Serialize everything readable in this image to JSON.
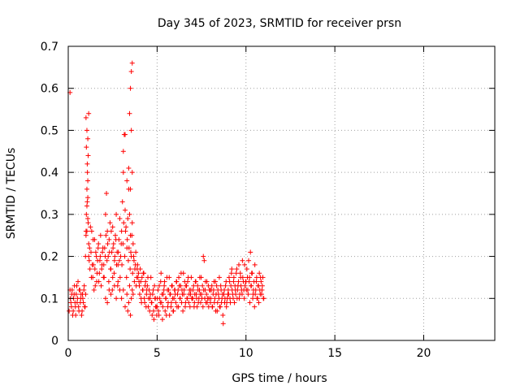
{
  "chart_data": {
    "type": "scatter",
    "title": "Day 345 of 2023, SRMTID for receiver prsn",
    "xlabel": "GPS time / hours",
    "ylabel": "SRMTID / TECUs",
    "xlim": [
      0,
      24
    ],
    "ylim": [
      0,
      0.7
    ],
    "xticks": [
      0,
      5,
      10,
      15,
      20
    ],
    "yticks": [
      0,
      0.1,
      0.2,
      0.3,
      0.4,
      0.5,
      0.6,
      0.7
    ],
    "xtick_labels": [
      "0",
      "5",
      "10",
      "15",
      "20"
    ],
    "ytick_labels": [
      "0",
      "0.1",
      "0.2",
      "0.3",
      "0.4",
      "0.5",
      "0.6",
      "0.7"
    ],
    "grid": true,
    "marker": "+",
    "series": [
      {
        "name": "SRMTID",
        "color": "#ff0000",
        "x": [
          0.05,
          0.1,
          0.15,
          0.2,
          0.25,
          0.3,
          0.35,
          0.4,
          0.45,
          0.5,
          0.55,
          0.6,
          0.65,
          0.7,
          0.75,
          0.8,
          0.85,
          0.9,
          0.95,
          0.12,
          0.18,
          0.22,
          0.28,
          0.33,
          0.38,
          0.42,
          0.48,
          0.52,
          0.58,
          0.62,
          0.68,
          0.72,
          0.78,
          0.82,
          0.88,
          0.92,
          0.98,
          0.1,
          1.0,
          1.05,
          1.1,
          1.15,
          1.2,
          1.25,
          1.3,
          1.35,
          1.4,
          1.45,
          1.5,
          1.55,
          1.6,
          1.65,
          1.7,
          1.75,
          1.8,
          1.85,
          1.9,
          1.95,
          0.97,
          1.0,
          1.02,
          1.05,
          1.07,
          1.1,
          1.12,
          1.15,
          1.18,
          1.22,
          1.28,
          1.32,
          1.38,
          1.42,
          1.48,
          1.52,
          1.58,
          1.62,
          1.68,
          1.72,
          1.78,
          1.82,
          1.88,
          1.92,
          1.98,
          1.0,
          1.02,
          1.05,
          1.08,
          1.1,
          1.12,
          1.15,
          1.05,
          1.07,
          1.1,
          2.0,
          2.05,
          2.1,
          2.15,
          2.2,
          2.25,
          2.3,
          2.35,
          2.4,
          2.45,
          2.5,
          2.55,
          2.6,
          2.65,
          2.7,
          2.75,
          2.8,
          2.85,
          2.9,
          2.95,
          2.02,
          2.08,
          2.12,
          2.18,
          2.22,
          2.28,
          2.32,
          2.38,
          2.42,
          2.48,
          2.52,
          2.58,
          2.62,
          2.68,
          2.72,
          2.78,
          2.82,
          2.88,
          2.92,
          2.98,
          2.1,
          2.2,
          2.3,
          2.4,
          2.5,
          2.6,
          2.7,
          2.8,
          2.9,
          3.0,
          3.05,
          3.1,
          3.15,
          3.2,
          3.25,
          3.3,
          3.35,
          3.4,
          3.45,
          3.5,
          3.55,
          3.6,
          3.65,
          3.7,
          3.75,
          3.8,
          3.85,
          3.9,
          3.95,
          3.02,
          3.08,
          3.12,
          3.18,
          3.22,
          3.28,
          3.32,
          3.38,
          3.42,
          3.48,
          3.52,
          3.58,
          3.62,
          3.68,
          3.72,
          3.78,
          3.82,
          3.88,
          3.92,
          3.98,
          3.0,
          3.1,
          3.2,
          3.3,
          3.35,
          3.4,
          3.45,
          3.5,
          3.55,
          3.6,
          3.65,
          3.5,
          3.55,
          3.6,
          3.45,
          3.55,
          3.1,
          3.2,
          3.3,
          3.4,
          3.5,
          3.6,
          4.0,
          4.05,
          4.1,
          4.15,
          4.2,
          4.25,
          4.3,
          4.35,
          4.4,
          4.45,
          4.5,
          4.55,
          4.6,
          4.65,
          4.7,
          4.75,
          4.8,
          4.85,
          4.9,
          4.95,
          4.02,
          4.08,
          4.12,
          4.18,
          4.22,
          4.28,
          4.32,
          4.38,
          4.42,
          4.48,
          4.52,
          4.58,
          4.62,
          4.68,
          4.72,
          4.78,
          4.82,
          4.88,
          4.92,
          4.98,
          5.0,
          5.05,
          5.1,
          5.15,
          5.2,
          5.25,
          5.3,
          5.35,
          5.4,
          5.45,
          5.5,
          5.55,
          5.6,
          5.65,
          5.7,
          5.75,
          5.8,
          5.85,
          5.9,
          5.95,
          5.02,
          5.08,
          5.12,
          5.18,
          5.22,
          5.28,
          5.32,
          5.38,
          5.42,
          5.48,
          5.52,
          5.58,
          5.62,
          5.68,
          5.72,
          5.78,
          5.82,
          5.88,
          5.92,
          5.98,
          6.0,
          6.05,
          6.1,
          6.15,
          6.2,
          6.25,
          6.3,
          6.35,
          6.4,
          6.45,
          6.5,
          6.55,
          6.6,
          6.65,
          6.7,
          6.75,
          6.8,
          6.85,
          6.9,
          6.95,
          6.02,
          6.08,
          6.12,
          6.18,
          6.22,
          6.28,
          6.32,
          6.38,
          6.42,
          6.48,
          6.52,
          6.58,
          6.62,
          6.68,
          6.72,
          6.78,
          6.82,
          6.88,
          6.92,
          6.98,
          7.0,
          7.05,
          7.1,
          7.15,
          7.2,
          7.25,
          7.3,
          7.35,
          7.4,
          7.45,
          7.5,
          7.55,
          7.6,
          7.65,
          7.7,
          7.75,
          7.8,
          7.85,
          7.9,
          7.95,
          7.02,
          7.08,
          7.12,
          7.18,
          7.22,
          7.28,
          7.32,
          7.38,
          7.42,
          7.48,
          7.52,
          7.58,
          7.62,
          7.68,
          7.72,
          7.78,
          7.82,
          7.88,
          7.92,
          7.98,
          8.0,
          8.05,
          8.1,
          8.15,
          8.2,
          8.25,
          8.3,
          8.35,
          8.4,
          8.45,
          8.5,
          8.55,
          8.6,
          8.65,
          8.7,
          8.75,
          8.8,
          8.85,
          8.9,
          8.95,
          8.02,
          8.08,
          8.12,
          8.18,
          8.22,
          8.28,
          8.32,
          8.38,
          8.42,
          8.48,
          8.52,
          8.58,
          8.62,
          8.68,
          8.72,
          8.78,
          8.82,
          8.88,
          8.92,
          8.98,
          9.0,
          9.05,
          9.1,
          9.15,
          9.2,
          9.25,
          9.3,
          9.35,
          9.4,
          9.45,
          9.5,
          9.55,
          9.6,
          9.65,
          9.7,
          9.75,
          9.8,
          9.85,
          9.9,
          9.95,
          9.02,
          9.08,
          9.12,
          9.18,
          9.22,
          9.28,
          9.32,
          9.38,
          9.42,
          9.48,
          9.52,
          9.58,
          9.62,
          9.68,
          9.72,
          9.78,
          9.82,
          9.88,
          9.92,
          9.98,
          10.0,
          10.05,
          10.1,
          10.15,
          10.2,
          10.25,
          10.3,
          10.35,
          10.4,
          10.45,
          10.5,
          10.55,
          10.6,
          10.65,
          10.7,
          10.75,
          10.8,
          10.85,
          10.9,
          10.95,
          11.0,
          10.02,
          10.08,
          10.12,
          10.18,
          10.22,
          10.28,
          10.32,
          10.38,
          10.42,
          10.48,
          10.52,
          10.58,
          10.62,
          10.68,
          10.72,
          10.78,
          10.82,
          10.88,
          10.92,
          10.98
        ],
        "y": [
          0.07,
          0.12,
          0.09,
          0.11,
          0.06,
          0.1,
          0.13,
          0.08,
          0.11,
          0.09,
          0.14,
          0.07,
          0.12,
          0.1,
          0.06,
          0.11,
          0.09,
          0.13,
          0.08,
          0.1,
          0.08,
          0.12,
          0.07,
          0.11,
          0.09,
          0.06,
          0.13,
          0.1,
          0.08,
          0.12,
          0.09,
          0.11,
          0.07,
          0.1,
          0.12,
          0.08,
          0.11,
          0.59,
          0.25,
          0.32,
          0.38,
          0.2,
          0.22,
          0.27,
          0.15,
          0.18,
          0.24,
          0.12,
          0.17,
          0.21,
          0.14,
          0.19,
          0.23,
          0.16,
          0.2,
          0.13,
          0.18,
          0.22,
          0.2,
          0.53,
          0.46,
          0.5,
          0.42,
          0.34,
          0.28,
          0.23,
          0.19,
          0.17,
          0.21,
          0.26,
          0.15,
          0.18,
          0.24,
          0.13,
          0.2,
          0.16,
          0.22,
          0.14,
          0.19,
          0.25,
          0.17,
          0.21,
          0.15,
          0.26,
          0.3,
          0.36,
          0.4,
          0.48,
          0.44,
          0.54,
          0.26,
          0.33,
          0.29,
          0.18,
          0.22,
          0.3,
          0.35,
          0.26,
          0.2,
          0.24,
          0.28,
          0.17,
          0.21,
          0.27,
          0.23,
          0.19,
          0.25,
          0.3,
          0.21,
          0.18,
          0.24,
          0.29,
          0.2,
          0.15,
          0.2,
          0.25,
          0.19,
          0.23,
          0.14,
          0.21,
          0.17,
          0.26,
          0.12,
          0.22,
          0.16,
          0.2,
          0.24,
          0.18,
          0.13,
          0.21,
          0.19,
          0.15,
          0.23,
          0.1,
          0.09,
          0.12,
          0.11,
          0.15,
          0.13,
          0.1,
          0.14,
          0.12,
          0.26,
          0.33,
          0.4,
          0.49,
          0.31,
          0.27,
          0.22,
          0.29,
          0.36,
          0.3,
          0.25,
          0.2,
          0.28,
          0.23,
          0.19,
          0.17,
          0.21,
          0.15,
          0.18,
          0.16,
          0.18,
          0.23,
          0.28,
          0.2,
          0.26,
          0.15,
          0.24,
          0.19,
          0.22,
          0.17,
          0.21,
          0.25,
          0.16,
          0.2,
          0.14,
          0.18,
          0.13,
          0.17,
          0.15,
          0.14,
          0.1,
          0.12,
          0.08,
          0.11,
          0.07,
          0.09,
          0.13,
          0.06,
          0.1,
          0.12,
          0.11,
          0.6,
          0.64,
          0.66,
          0.54,
          0.5,
          0.45,
          0.49,
          0.38,
          0.41,
          0.36,
          0.4,
          0.13,
          0.17,
          0.1,
          0.15,
          0.12,
          0.16,
          0.09,
          0.14,
          0.11,
          0.13,
          0.08,
          0.12,
          0.1,
          0.15,
          0.09,
          0.11,
          0.07,
          0.13,
          0.1,
          0.08,
          0.11,
          0.14,
          0.09,
          0.12,
          0.16,
          0.1,
          0.13,
          0.08,
          0.12,
          0.15,
          0.1,
          0.07,
          0.11,
          0.09,
          0.06,
          0.12,
          0.05,
          0.1,
          0.08,
          0.06,
          0.08,
          0.12,
          0.06,
          0.1,
          0.14,
          0.09,
          0.05,
          0.11,
          0.13,
          0.07,
          0.1,
          0.15,
          0.08,
          0.12,
          0.06,
          0.11,
          0.09,
          0.13,
          0.07,
          0.1,
          0.1,
          0.07,
          0.13,
          0.09,
          0.16,
          0.11,
          0.08,
          0.12,
          0.14,
          0.1,
          0.06,
          0.12,
          0.09,
          0.15,
          0.11,
          0.08,
          0.13,
          0.1,
          0.07,
          0.12,
          0.12,
          0.09,
          0.14,
          0.11,
          0.08,
          0.13,
          0.1,
          0.16,
          0.12,
          0.07,
          0.11,
          0.14,
          0.09,
          0.13,
          0.1,
          0.15,
          0.11,
          0.08,
          0.12,
          0.1,
          0.11,
          0.14,
          0.08,
          0.12,
          0.15,
          0.1,
          0.13,
          0.09,
          0.11,
          0.16,
          0.12,
          0.08,
          0.13,
          0.1,
          0.14,
          0.09,
          0.12,
          0.11,
          0.15,
          0.1,
          0.1,
          0.13,
          0.09,
          0.14,
          0.11,
          0.08,
          0.12,
          0.1,
          0.15,
          0.09,
          0.11,
          0.13,
          0.2,
          0.19,
          0.12,
          0.09,
          0.14,
          0.1,
          0.08,
          0.12,
          0.12,
          0.08,
          0.11,
          0.14,
          0.1,
          0.13,
          0.09,
          0.12,
          0.11,
          0.15,
          0.1,
          0.08,
          0.12,
          0.1,
          0.14,
          0.11,
          0.09,
          0.13,
          0.1,
          0.12,
          0.09,
          0.12,
          0.08,
          0.11,
          0.14,
          0.1,
          0.07,
          0.13,
          0.09,
          0.11,
          0.15,
          0.08,
          0.12,
          0.1,
          0.06,
          0.11,
          0.09,
          0.13,
          0.08,
          0.1,
          0.1,
          0.13,
          0.08,
          0.12,
          0.09,
          0.14,
          0.11,
          0.07,
          0.12,
          0.1,
          0.08,
          0.13,
          0.09,
          0.11,
          0.04,
          0.12,
          0.1,
          0.14,
          0.09,
          0.11,
          0.12,
          0.15,
          0.1,
          0.13,
          0.17,
          0.11,
          0.14,
          0.09,
          0.12,
          0.16,
          0.1,
          0.13,
          0.18,
          0.11,
          0.15,
          0.12,
          0.19,
          0.14,
          0.1,
          0.13,
          0.11,
          0.14,
          0.09,
          0.16,
          0.12,
          0.1,
          0.15,
          0.13,
          0.11,
          0.17,
          0.12,
          0.14,
          0.1,
          0.16,
          0.13,
          0.11,
          0.15,
          0.12,
          0.18,
          0.14,
          0.14,
          0.17,
          0.12,
          0.19,
          0.15,
          0.21,
          0.13,
          0.16,
          0.11,
          0.14,
          0.18,
          0.12,
          0.15,
          0.1,
          0.13,
          0.16,
          0.11,
          0.14,
          0.12,
          0.15,
          0.1,
          0.12,
          0.15,
          0.11,
          0.14,
          0.09,
          0.13,
          0.16,
          0.1,
          0.12,
          0.08,
          0.11,
          0.14,
          0.1,
          0.13,
          0.09,
          0.12,
          0.15,
          0.11,
          0.13,
          0.1
        ]
      }
    ]
  }
}
